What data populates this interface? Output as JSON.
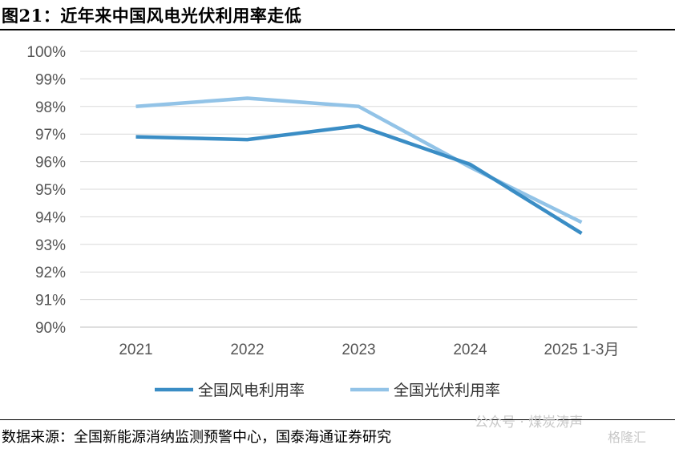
{
  "header": {
    "title": "图21：近年来中国风电光伏利用率走低"
  },
  "footer": {
    "source": "数据来源：全国新能源消纳监测预警中心，国泰海通证券研究",
    "watermark": "公众号 · 煤炭涛声",
    "watermark2": "格隆汇"
  },
  "chart_data": {
    "type": "line",
    "categories": [
      "2021",
      "2022",
      "2023",
      "2024",
      "2025 1-3月"
    ],
    "y_tick_labels": [
      "90%",
      "91%",
      "92%",
      "93%",
      "94%",
      "95%",
      "96%",
      "97%",
      "98%",
      "99%",
      "100%"
    ],
    "ylim": [
      90,
      100
    ],
    "y_unit": "%",
    "grid": true,
    "legend_position": "bottom",
    "series": [
      {
        "name": "全国风电利用率",
        "values": [
          96.9,
          96.8,
          97.3,
          95.9,
          93.4
        ],
        "color": "#3a8dc5"
      },
      {
        "name": "全国光伏利用率",
        "values": [
          98.0,
          98.3,
          98.0,
          95.8,
          93.8
        ],
        "color": "#92c3e7"
      }
    ]
  }
}
